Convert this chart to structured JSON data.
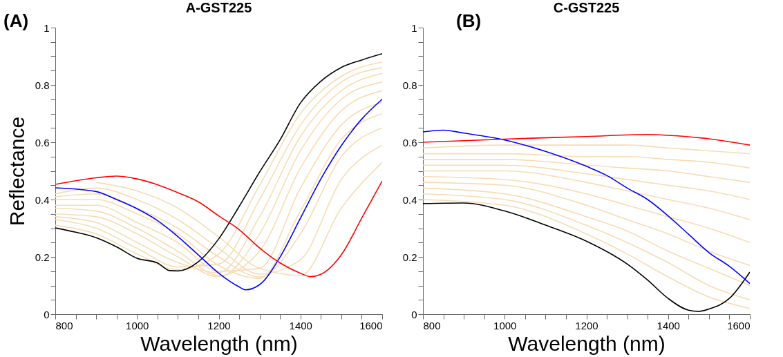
{
  "chart_data": [
    {
      "type": "line",
      "title": "A-GST225",
      "xlabel": "Wavelength (nm)",
      "ylabel": "Reflectance",
      "annotations": [
        "(A)"
      ],
      "xlim": [
        800,
        1600
      ],
      "ylim": [
        0,
        1
      ],
      "xticks": [
        800,
        {
          "value": 850,
          "label": null
        },
        1000,
        {
          "value": 900,
          "label": null
        },
        {
          "value": 950,
          "label": null
        },
        {
          "value": 1050,
          "label": null
        },
        {
          "value": 1100,
          "label": null
        },
        {
          "value": 1150,
          "label": null
        },
        1200,
        {
          "value": 1250,
          "label": null
        },
        {
          "value": 1300,
          "label": null
        },
        {
          "value": 1350,
          "label": null
        },
        1400,
        {
          "value": 1450,
          "label": null
        },
        {
          "value": 1500,
          "label": null
        },
        {
          "value": 1550,
          "label": null
        },
        1600
      ],
      "yticks": [
        0,
        {
          "value": 0.05,
          "label": null
        },
        {
          "value": 0.1,
          "label": null
        },
        {
          "value": 0.15,
          "label": null
        },
        0.2,
        {
          "value": 0.25,
          "label": null
        },
        {
          "value": 0.3,
          "label": null
        },
        {
          "value": 0.35,
          "label": null
        },
        0.4,
        {
          "value": 0.45,
          "label": null
        },
        {
          "value": 0.5,
          "label": null
        },
        {
          "value": 0.55,
          "label": null
        },
        0.6,
        {
          "value": 0.65,
          "label": null
        },
        {
          "value": 0.7,
          "label": null
        },
        {
          "value": 0.75,
          "label": null
        },
        0.8,
        {
          "value": 0.85,
          "label": null
        },
        {
          "value": 0.9,
          "label": null
        },
        {
          "value": 0.95,
          "label": null
        },
        1
      ],
      "x": [
        800,
        900,
        1000,
        1100,
        1200,
        1300,
        1400,
        1500,
        1600
      ],
      "series": [
        {
          "color": "#f7dcb5",
          "values": [
            0.31,
            0.28,
            0.21,
            0.155,
            0.21,
            0.45,
            0.7,
            0.83,
            0.88
          ]
        },
        {
          "color": "#f7dcb5",
          "values": [
            0.33,
            0.3,
            0.23,
            0.165,
            0.175,
            0.4,
            0.66,
            0.81,
            0.86
          ]
        },
        {
          "color": "#f7dcb5",
          "values": [
            0.34,
            0.32,
            0.25,
            0.18,
            0.145,
            0.34,
            0.62,
            0.78,
            0.84
          ]
        },
        {
          "color": "#f7dcb5",
          "values": [
            0.35,
            0.34,
            0.28,
            0.2,
            0.13,
            0.28,
            0.57,
            0.75,
            0.81
          ]
        },
        {
          "color": "#f7dcb5",
          "values": [
            0.37,
            0.36,
            0.3,
            0.22,
            0.135,
            0.22,
            0.51,
            0.71,
            0.78
          ]
        },
        {
          "color": "#f7dcb5",
          "values": [
            0.38,
            0.38,
            0.32,
            0.25,
            0.15,
            0.16,
            0.44,
            0.66,
            0.74
          ]
        },
        {
          "color": "#f7dcb5",
          "values": [
            0.4,
            0.4,
            0.35,
            0.28,
            0.17,
            0.125,
            0.36,
            0.61,
            0.7
          ]
        },
        {
          "color": "#f7dcb5",
          "values": [
            0.41,
            0.42,
            0.37,
            0.3,
            0.2,
            0.13,
            0.28,
            0.55,
            0.65
          ]
        },
        {
          "color": "#f7dcb5",
          "values": [
            0.42,
            0.44,
            0.4,
            0.33,
            0.23,
            0.14,
            0.19,
            0.47,
            0.59
          ]
        },
        {
          "color": "#f7dcb5",
          "values": [
            null,
            0.46,
            0.43,
            0.37,
            0.27,
            0.16,
            0.135,
            0.37,
            0.53
          ]
        },
        {
          "color": "#000000",
          "x": [
            800,
            850,
            900,
            950,
            1000,
            1050,
            1080,
            1100,
            1150,
            1200,
            1250,
            1300,
            1350,
            1400,
            1450,
            1500,
            1550,
            1600
          ],
          "values": [
            0.301,
            0.286,
            0.267,
            0.235,
            0.195,
            0.179,
            0.152,
            0.151,
            0.183,
            0.263,
            0.376,
            0.496,
            0.608,
            0.737,
            0.813,
            0.861,
            0.887,
            0.909
          ]
        },
        {
          "color": "#0000ff",
          "x": [
            800,
            900,
            950,
            1000,
            1050,
            1100,
            1150,
            1200,
            1250,
            1265,
            1300,
            1350,
            1400,
            1450,
            1500,
            1550,
            1600
          ],
          "values": [
            0.441,
            0.428,
            0.4,
            0.368,
            0.327,
            0.271,
            0.207,
            0.143,
            0.095,
            0.085,
            0.103,
            0.199,
            0.335,
            0.472,
            0.588,
            0.681,
            0.75
          ]
        },
        {
          "color": "#ff0000",
          "x": [
            800,
            900,
            950,
            1000,
            1050,
            1100,
            1150,
            1200,
            1250,
            1300,
            1350,
            1400,
            1425,
            1450,
            1500,
            1550,
            1600
          ],
          "values": [
            0.453,
            0.476,
            0.482,
            0.472,
            0.452,
            0.424,
            0.392,
            0.343,
            0.295,
            0.231,
            0.179,
            0.143,
            0.131,
            0.139,
            0.207,
            0.335,
            0.465
          ]
        }
      ]
    },
    {
      "type": "line",
      "title": "C-GST225",
      "xlabel": "Wavelength (nm)",
      "annotations": [
        "(B)"
      ],
      "xlim": [
        800,
        1600
      ],
      "ylim": [
        0,
        1
      ],
      "xticks": [
        800,
        {
          "value": 850,
          "label": null
        },
        1000,
        {
          "value": 900,
          "label": null
        },
        {
          "value": 950,
          "label": null
        },
        {
          "value": 1050,
          "label": null
        },
        {
          "value": 1100,
          "label": null
        },
        {
          "value": 1150,
          "label": null
        },
        1200,
        {
          "value": 1250,
          "label": null
        },
        {
          "value": 1300,
          "label": null
        },
        {
          "value": 1350,
          "label": null
        },
        1400,
        {
          "value": 1450,
          "label": null
        },
        {
          "value": 1500,
          "label": null
        },
        {
          "value": 1550,
          "label": null
        },
        1600
      ],
      "yticks": [
        0,
        {
          "value": 0.05,
          "label": null
        },
        {
          "value": 0.1,
          "label": null
        },
        {
          "value": 0.15,
          "label": null
        },
        0.2,
        {
          "value": 0.25,
          "label": null
        },
        {
          "value": 0.3,
          "label": null
        },
        {
          "value": 0.35,
          "label": null
        },
        0.4,
        {
          "value": 0.45,
          "label": null
        },
        {
          "value": 0.5,
          "label": null
        },
        {
          "value": 0.55,
          "label": null
        },
        0.6,
        {
          "value": 0.65,
          "label": null
        },
        {
          "value": 0.7,
          "label": null
        },
        {
          "value": 0.75,
          "label": null
        },
        0.8,
        {
          "value": 0.85,
          "label": null
        },
        {
          "value": 0.9,
          "label": null
        },
        {
          "value": 0.95,
          "label": null
        },
        1
      ],
      "x": [
        800,
        1000,
        1200,
        1300,
        1400,
        1500,
        1600
      ],
      "series": [
        {
          "color": "#f7dcb5",
          "values": [
            0.4,
            0.38,
            0.28,
            0.21,
            0.13,
            0.06,
            0.02
          ]
        },
        {
          "color": "#f7dcb5",
          "values": [
            0.42,
            0.4,
            0.31,
            0.25,
            0.18,
            0.1,
            0.05
          ]
        },
        {
          "color": "#f7dcb5",
          "values": [
            0.44,
            0.42,
            0.34,
            0.29,
            0.22,
            0.16,
            0.1
          ]
        },
        {
          "color": "#f7dcb5",
          "values": [
            0.46,
            0.45,
            0.38,
            0.33,
            0.28,
            0.22,
            0.17
          ]
        },
        {
          "color": "#f7dcb5",
          "values": [
            0.48,
            0.47,
            0.42,
            0.38,
            0.34,
            0.3,
            0.25
          ]
        },
        {
          "color": "#f7dcb5",
          "values": [
            0.5,
            0.5,
            0.46,
            0.43,
            0.4,
            0.37,
            0.33
          ]
        },
        {
          "color": "#f7dcb5",
          "values": [
            0.52,
            0.52,
            0.49,
            0.47,
            0.45,
            0.43,
            0.4
          ]
        },
        {
          "color": "#f7dcb5",
          "values": [
            0.54,
            0.54,
            0.52,
            0.51,
            0.5,
            0.48,
            0.46
          ]
        },
        {
          "color": "#f7dcb5",
          "values": [
            0.56,
            0.56,
            0.55,
            0.55,
            0.54,
            0.53,
            0.51
          ]
        },
        {
          "color": "#f7dcb5",
          "values": [
            0.58,
            0.59,
            0.59,
            0.59,
            0.58,
            0.57,
            0.56
          ]
        },
        {
          "color": "#000000",
          "x": [
            800,
            900,
            1000,
            1100,
            1200,
            1300,
            1350,
            1400,
            1450,
            1475,
            1500,
            1550,
            1600
          ],
          "values": [
            0.386,
            0.388,
            0.36,
            0.311,
            0.255,
            0.175,
            0.119,
            0.055,
            0.014,
            0.01,
            0.018,
            0.055,
            0.147
          ]
        },
        {
          "color": "#0000ff",
          "x": [
            800,
            850,
            900,
            1000,
            1100,
            1200,
            1250,
            1300,
            1350,
            1400,
            1450,
            1500,
            1550,
            1600
          ],
          "values": [
            0.636,
            0.642,
            0.632,
            0.608,
            0.568,
            0.516,
            0.484,
            0.44,
            0.4,
            0.343,
            0.279,
            0.215,
            0.167,
            0.107
          ]
        },
        {
          "color": "#ff0000",
          "x": [
            800,
            1000,
            1200,
            1350,
            1400,
            1500,
            1600
          ],
          "values": [
            0.6,
            0.611,
            0.62,
            0.627,
            0.624,
            0.612,
            0.59
          ]
        }
      ]
    }
  ]
}
